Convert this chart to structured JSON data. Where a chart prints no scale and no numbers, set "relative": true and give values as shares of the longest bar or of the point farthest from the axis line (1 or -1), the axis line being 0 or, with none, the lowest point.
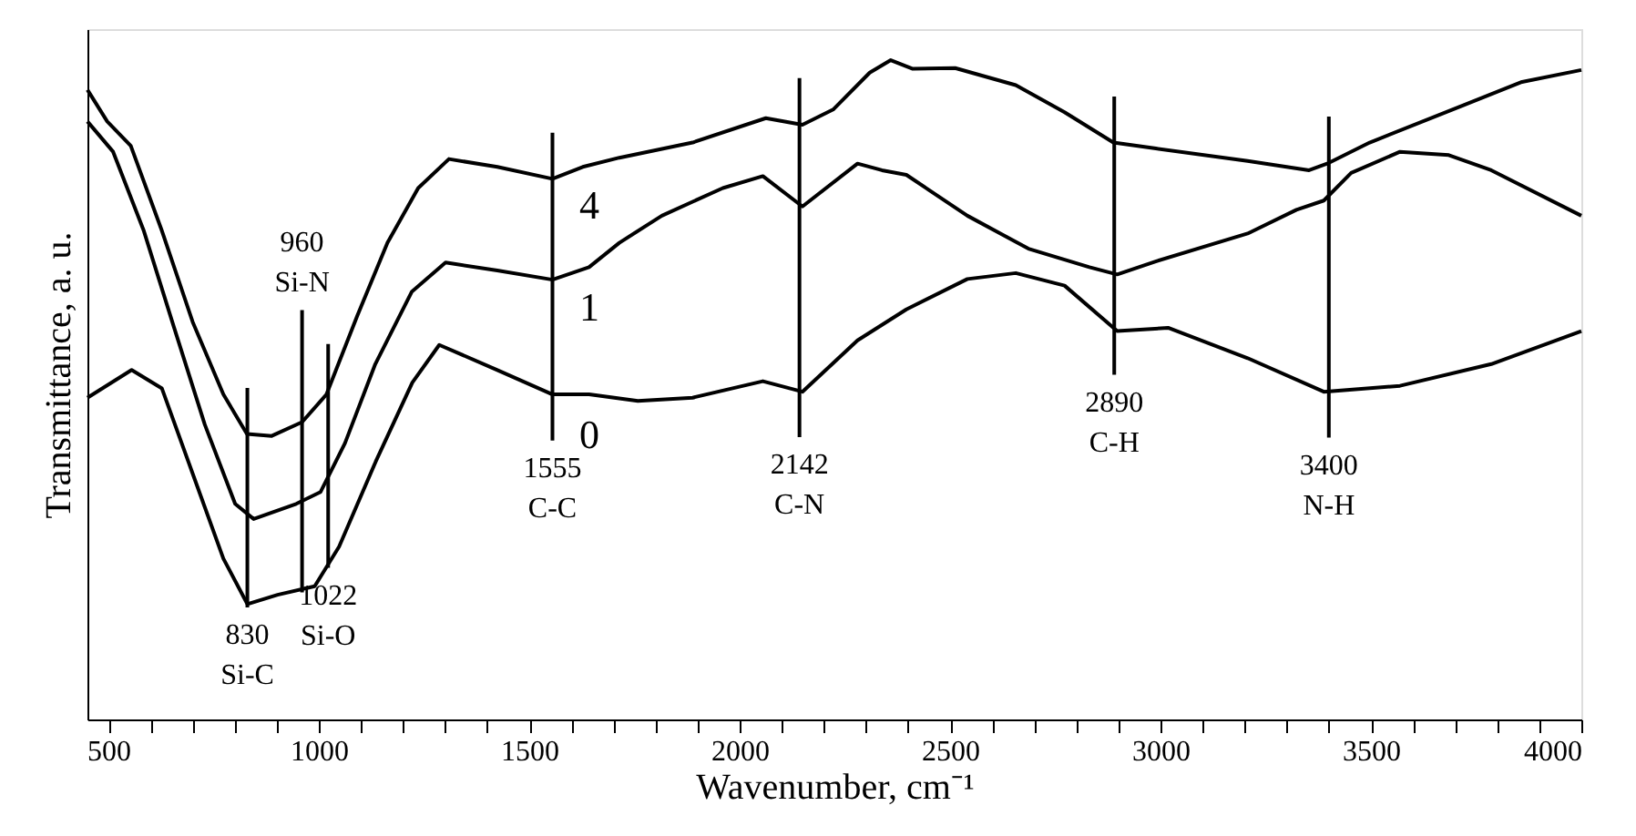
{
  "chart_data": {
    "type": "line",
    "xlabel": "Wavenumber, cm⁻¹",
    "ylabel": "Transmittance, a. u.",
    "relative": true,
    "grid": false,
    "marker": "none",
    "line_style": "solid",
    "xlim": [
      450,
      4000
    ],
    "xticks": [
      {
        "value": 500,
        "label": "500"
      },
      {
        "value": 600,
        "label": null
      },
      {
        "value": 700,
        "label": null
      },
      {
        "value": 800,
        "label": null
      },
      {
        "value": 900,
        "label": null
      },
      {
        "value": 1000,
        "label": "1000"
      },
      {
        "value": 1100,
        "label": null
      },
      {
        "value": 1200,
        "label": null
      },
      {
        "value": 1300,
        "label": null
      },
      {
        "value": 1400,
        "label": null
      },
      {
        "value": 1500,
        "label": "1500"
      },
      {
        "value": 1600,
        "label": null
      },
      {
        "value": 1700,
        "label": null
      },
      {
        "value": 1800,
        "label": null
      },
      {
        "value": 1900,
        "label": null
      },
      {
        "value": 2000,
        "label": "2000"
      },
      {
        "value": 2100,
        "label": null
      },
      {
        "value": 2200,
        "label": null
      },
      {
        "value": 2300,
        "label": null
      },
      {
        "value": 2400,
        "label": null
      },
      {
        "value": 2500,
        "label": "2500"
      },
      {
        "value": 2600,
        "label": null
      },
      {
        "value": 2700,
        "label": null
      },
      {
        "value": 2800,
        "label": null
      },
      {
        "value": 2900,
        "label": null
      },
      {
        "value": 3000,
        "label": "3000"
      },
      {
        "value": 3100,
        "label": null
      },
      {
        "value": 3200,
        "label": null
      },
      {
        "value": 3300,
        "label": null
      },
      {
        "value": 3400,
        "label": null
      },
      {
        "value": 3500,
        "label": "3500"
      },
      {
        "value": 3600,
        "label": null
      },
      {
        "value": 3700,
        "label": null
      },
      {
        "value": 3800,
        "label": null
      },
      {
        "value": 3900,
        "label": null
      },
      {
        "value": 4000,
        "label": "4000"
      }
    ],
    "series": [
      {
        "name": "4",
        "color": "#000000",
        "x": [
          450,
          497,
          553,
          627,
          700,
          773,
          829,
          888,
          960,
          1018,
          1091,
          1163,
          1236,
          1309,
          1424,
          1555,
          1627,
          1714,
          1888,
          2062,
          2149,
          2222,
          2309,
          2359,
          2410,
          2512,
          2656,
          2772,
          2888,
          2989,
          3207,
          3353,
          3396,
          3497,
          3714,
          3859,
          4000
        ],
        "values": [
          0.955,
          0.907,
          0.87,
          0.741,
          0.603,
          0.493,
          0.433,
          0.43,
          0.451,
          0.493,
          0.612,
          0.723,
          0.806,
          0.85,
          0.838,
          0.82,
          0.838,
          0.852,
          0.875,
          0.912,
          0.902,
          0.925,
          0.981,
          1.0,
          0.987,
          0.988,
          0.962,
          0.921,
          0.875,
          0.866,
          0.847,
          0.833,
          0.843,
          0.875,
          0.93,
          0.967,
          0.985
        ]
      },
      {
        "name": "1",
        "color": "#000000",
        "x": [
          450,
          511,
          584,
          656,
          729,
          801,
          845,
          946,
          1004,
          1062,
          1134,
          1221,
          1301,
          1424,
          1555,
          1642,
          1714,
          1815,
          1960,
          2055,
          2149,
          2280,
          2338,
          2396,
          2541,
          2686,
          2831,
          2897,
          2990,
          3207,
          3323,
          3388,
          3453,
          3569,
          3685,
          3786,
          4000
        ],
        "values": [
          0.907,
          0.861,
          0.741,
          0.594,
          0.447,
          0.327,
          0.304,
          0.327,
          0.345,
          0.419,
          0.539,
          0.649,
          0.693,
          0.681,
          0.667,
          0.686,
          0.723,
          0.764,
          0.806,
          0.824,
          0.778,
          0.843,
          0.833,
          0.826,
          0.764,
          0.714,
          0.686,
          0.675,
          0.695,
          0.737,
          0.773,
          0.787,
          0.829,
          0.861,
          0.856,
          0.833,
          0.764
        ]
      },
      {
        "name": "0",
        "color": "#000000",
        "x": [
          450,
          555,
          627,
          700,
          773,
          830,
          902,
          990,
          1048,
          1135,
          1222,
          1286,
          1424,
          1555,
          1642,
          1758,
          1888,
          2055,
          2149,
          2280,
          2396,
          2541,
          2656,
          2772,
          2897,
          3018,
          3207,
          3388,
          3569,
          3786,
          4000
        ],
        "values": [
          0.488,
          0.53,
          0.502,
          0.373,
          0.244,
          0.175,
          0.189,
          0.202,
          0.262,
          0.391,
          0.511,
          0.568,
          0.53,
          0.493,
          0.493,
          0.483,
          0.488,
          0.513,
          0.497,
          0.575,
          0.622,
          0.668,
          0.677,
          0.658,
          0.589,
          0.594,
          0.548,
          0.497,
          0.506,
          0.539,
          0.589
        ]
      }
    ],
    "ref_lines": [
      {
        "axis": "x",
        "value": 830,
        "label": "830 Si-C"
      },
      {
        "axis": "x",
        "value": 960,
        "label": "960 Si-N"
      },
      {
        "axis": "x",
        "value": 1022,
        "label": "1022 Si-O"
      },
      {
        "axis": "x",
        "value": 1555,
        "label": "1555 C-C"
      },
      {
        "axis": "x",
        "value": 2142,
        "label": "2142 C-N"
      },
      {
        "axis": "x",
        "value": 2890,
        "label": "2890 C-H"
      },
      {
        "axis": "x",
        "value": 3400,
        "label": "3400 N-H"
      }
    ]
  }
}
